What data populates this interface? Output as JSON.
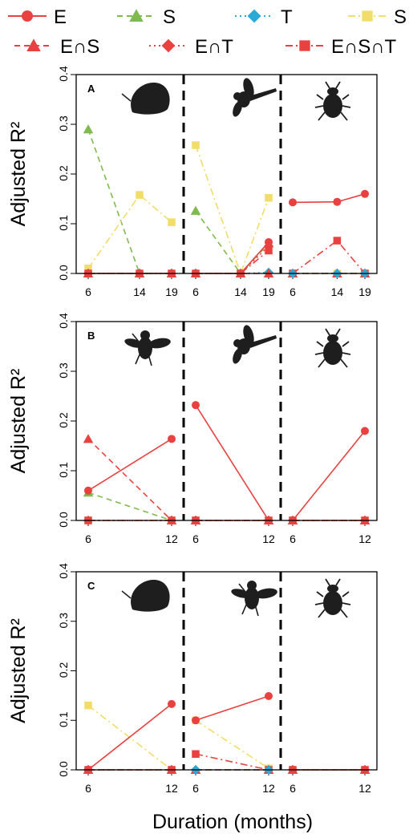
{
  "xlabel": "Duration (months)",
  "series_styles": {
    "E": {
      "label": "E",
      "color": "#e8413f",
      "marker": "circle",
      "dash": ""
    },
    "S": {
      "label": "S",
      "color": "#7fba4f",
      "marker": "triangle",
      "dash": "7,5"
    },
    "T": {
      "label": "T",
      "color": "#29a9d3",
      "marker": "diamond",
      "dash": "2,4"
    },
    "SnT": {
      "label": "S∩T",
      "color": "#f2dc6a",
      "marker": "square",
      "dash": "9,4,2,4"
    },
    "EnS": {
      "label": "E∩S",
      "color": "#e8413f",
      "marker": "triangle",
      "dash": "7,5"
    },
    "EnT": {
      "label": "E∩T",
      "color": "#e8413f",
      "marker": "diamond",
      "dash": "2,4"
    },
    "EnSnT": {
      "label": "E∩S∩T",
      "color": "#e8413f",
      "marker": "square",
      "dash": "9,4,2,4"
    }
  },
  "legend_order": [
    "E",
    "S",
    "T",
    "SnT",
    "EnS",
    "EnT",
    "EnSnT"
  ],
  "chart_data": [
    {
      "type": "line",
      "panel_label": "A",
      "ylabel": "Adjusted R²",
      "ylim": [
        0,
        0.4
      ],
      "yticks": [
        "0.0",
        "0.1",
        "0.2",
        "0.3",
        "0.4"
      ],
      "groups": [
        {
          "silhouette": "slug-icon",
          "x": [
            6,
            14,
            19
          ],
          "series": [
            {
              "key": "E",
              "values": [
                0.0,
                0.0,
                0.0
              ]
            },
            {
              "key": "S",
              "values": [
                0.29,
                0.0,
                0.0
              ]
            },
            {
              "key": "T",
              "values": [
                0.0,
                0.0,
                0.0
              ]
            },
            {
              "key": "SnT",
              "values": [
                0.01,
                0.158,
                0.103
              ]
            },
            {
              "key": "EnS",
              "values": [
                0.0,
                0.0,
                0.0
              ]
            },
            {
              "key": "EnT",
              "values": [
                0.0,
                0.0,
                0.0
              ]
            },
            {
              "key": "EnSnT",
              "values": [
                0.0,
                0.0,
                0.0
              ]
            }
          ]
        },
        {
          "silhouette": "dragonfly-icon",
          "x": [
            6,
            14,
            19
          ],
          "series": [
            {
              "key": "SnT",
              "values": [
                0.258,
                0.0,
                0.152
              ]
            },
            {
              "key": "S",
              "values": [
                0.126,
                0.0,
                0.06
              ]
            },
            {
              "key": "T",
              "values": [
                0.0,
                0.0,
                0.002
              ]
            },
            {
              "key": "EnS",
              "values": [
                0.0,
                0.0,
                0.0
              ]
            },
            {
              "key": "EnT",
              "values": [
                0.0,
                0.0,
                0.055
              ]
            },
            {
              "key": "EnSnT",
              "values": [
                0.0,
                0.0,
                0.046
              ]
            },
            {
              "key": "E",
              "values": [
                0.0,
                0.0,
                0.063
              ]
            }
          ]
        },
        {
          "silhouette": "beetle-icon",
          "x": [
            6,
            14,
            19
          ],
          "series": [
            {
              "key": "E",
              "values": [
                0.143,
                0.144,
                0.16
              ]
            },
            {
              "key": "S",
              "values": [
                0.0,
                0.0,
                0.0
              ]
            },
            {
              "key": "SnT",
              "values": [
                0.0,
                0.0,
                0.0
              ]
            },
            {
              "key": "EnS",
              "values": [
                0.0,
                0.0,
                0.0
              ]
            },
            {
              "key": "EnT",
              "values": [
                0.0,
                0.0,
                0.0
              ]
            },
            {
              "key": "EnSnT",
              "values": [
                0.0,
                0.066,
                0.0
              ]
            },
            {
              "key": "T",
              "values": [
                0.0,
                0.0,
                0.0
              ]
            }
          ]
        }
      ]
    },
    {
      "type": "line",
      "panel_label": "B",
      "ylabel": "Adjusted R²",
      "ylim": [
        0,
        0.4
      ],
      "yticks": [
        "0.0",
        "0.1",
        "0.2",
        "0.3",
        "0.4"
      ],
      "groups": [
        {
          "silhouette": "fly-icon",
          "x": [
            6,
            12
          ],
          "series": [
            {
              "key": "S",
              "values": [
                0.056,
                0.0
              ]
            },
            {
              "key": "EnS",
              "values": [
                0.164,
                0.0
              ]
            },
            {
              "key": "E",
              "values": [
                0.06,
                0.164
              ]
            },
            {
              "key": "T",
              "values": [
                0.0,
                0.0
              ]
            },
            {
              "key": "SnT",
              "values": [
                0.0,
                0.0
              ]
            },
            {
              "key": "EnT",
              "values": [
                0.0,
                0.0
              ]
            },
            {
              "key": "EnSnT",
              "values": [
                0.0,
                0.0
              ]
            }
          ]
        },
        {
          "silhouette": "dragonfly-icon",
          "x": [
            6,
            12
          ],
          "series": [
            {
              "key": "E",
              "values": [
                0.232,
                0.0
              ]
            },
            {
              "key": "S",
              "values": [
                0.0,
                0.0
              ]
            },
            {
              "key": "T",
              "values": [
                0.0,
                0.0
              ]
            },
            {
              "key": "SnT",
              "values": [
                0.0,
                0.0
              ]
            },
            {
              "key": "EnS",
              "values": [
                0.0,
                0.0
              ]
            },
            {
              "key": "EnT",
              "values": [
                0.0,
                0.0
              ]
            },
            {
              "key": "EnSnT",
              "values": [
                0.0,
                0.0
              ]
            }
          ]
        },
        {
          "silhouette": "beetle-icon",
          "x": [
            6,
            12
          ],
          "series": [
            {
              "key": "E",
              "values": [
                0.0,
                0.18
              ]
            },
            {
              "key": "S",
              "values": [
                0.0,
                0.0
              ]
            },
            {
              "key": "T",
              "values": [
                0.0,
                0.0
              ]
            },
            {
              "key": "SnT",
              "values": [
                0.0,
                0.0
              ]
            },
            {
              "key": "EnS",
              "values": [
                0.0,
                0.0
              ]
            },
            {
              "key": "EnT",
              "values": [
                0.0,
                0.0
              ]
            },
            {
              "key": "EnSnT",
              "values": [
                0.0,
                0.0
              ]
            }
          ]
        }
      ]
    },
    {
      "type": "line",
      "panel_label": "C",
      "ylabel": "Adjusted R²",
      "ylim": [
        0,
        0.4
      ],
      "yticks": [
        "0.0",
        "0.1",
        "0.2",
        "0.3",
        "0.4"
      ],
      "groups": [
        {
          "silhouette": "slug-icon",
          "x": [
            6,
            12
          ],
          "series": [
            {
              "key": "SnT",
              "values": [
                0.13,
                0.0
              ]
            },
            {
              "key": "E",
              "values": [
                0.0,
                0.133
              ]
            },
            {
              "key": "S",
              "values": [
                0.0,
                0.0
              ]
            },
            {
              "key": "T",
              "values": [
                0.0,
                0.0
              ]
            },
            {
              "key": "EnS",
              "values": [
                0.0,
                0.0
              ]
            },
            {
              "key": "EnT",
              "values": [
                0.0,
                0.0
              ]
            },
            {
              "key": "EnSnT",
              "values": [
                0.0,
                0.0
              ]
            }
          ]
        },
        {
          "silhouette": "fly-icon",
          "x": [
            6,
            12
          ],
          "series": [
            {
              "key": "SnT",
              "values": [
                0.1,
                0.003
              ]
            },
            {
              "key": "E",
              "values": [
                0.1,
                0.149
              ]
            },
            {
              "key": "EnSnT",
              "values": [
                0.032,
                0.0
              ]
            },
            {
              "key": "S",
              "values": [
                0.0,
                0.0
              ]
            },
            {
              "key": "EnS",
              "values": [
                0.0,
                0.0
              ]
            },
            {
              "key": "EnT",
              "values": [
                0.0,
                0.0
              ]
            },
            {
              "key": "T",
              "values": [
                0.0,
                0.0
              ]
            }
          ]
        },
        {
          "silhouette": "beetle-icon",
          "x": [
            6,
            12
          ],
          "series": [
            {
              "key": "E",
              "values": [
                0.0,
                0.0
              ]
            },
            {
              "key": "S",
              "values": [
                0.0,
                0.0
              ]
            },
            {
              "key": "T",
              "values": [
                0.0,
                0.0
              ]
            },
            {
              "key": "SnT",
              "values": [
                0.0,
                0.0
              ]
            },
            {
              "key": "EnS",
              "values": [
                0.0,
                0.0
              ]
            },
            {
              "key": "EnT",
              "values": [
                0.0,
                0.0
              ]
            },
            {
              "key": "EnSnT",
              "values": [
                0.0,
                0.0
              ]
            }
          ]
        }
      ]
    }
  ]
}
